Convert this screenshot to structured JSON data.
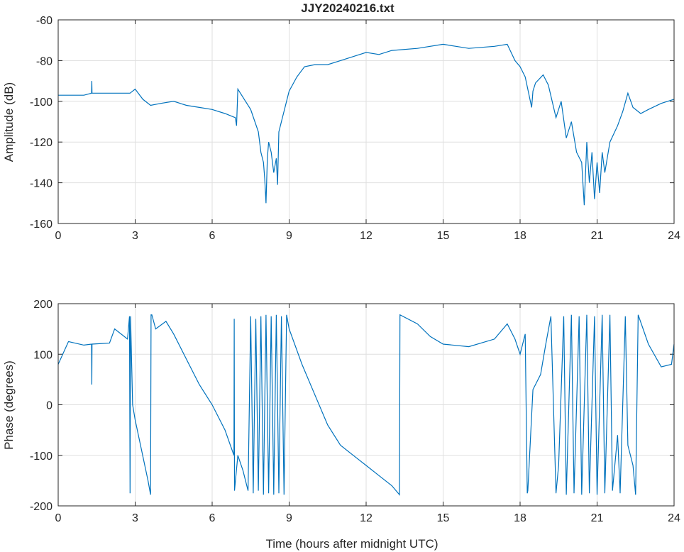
{
  "chart_data": [
    {
      "type": "line",
      "title": "JJY20240216.txt",
      "xlabel": "",
      "ylabel": "Amplitude (dB)",
      "xlim": [
        0,
        24
      ],
      "ylim": [
        -160,
        -60
      ],
      "xticks": [
        0,
        3,
        6,
        9,
        12,
        15,
        18,
        21,
        24
      ],
      "yticks": [
        -160,
        -140,
        -120,
        -100,
        -80,
        -60
      ],
      "grid": true,
      "color": "#0072BD",
      "series": [
        {
          "name": "amplitude",
          "x": [
            0,
            0.5,
            1,
            1.3,
            1.31,
            1.32,
            2,
            2.8,
            3,
            3.3,
            3.6,
            4,
            4.5,
            5,
            5.5,
            6,
            6.5,
            6.9,
            6.95,
            7,
            7.2,
            7.5,
            7.8,
            7.9,
            8,
            8.05,
            8.1,
            8.15,
            8.2,
            8.3,
            8.4,
            8.5,
            8.55,
            8.6,
            8.7,
            9,
            9.3,
            9.6,
            10,
            10.5,
            11,
            11.5,
            12,
            12.5,
            13,
            14,
            15,
            15.5,
            16,
            17,
            17.5,
            17.8,
            18,
            18.2,
            18.45,
            18.5,
            18.6,
            18.9,
            19.1,
            19.4,
            19.6,
            19.8,
            20,
            20.2,
            20.4,
            20.5,
            20.6,
            20.7,
            20.8,
            20.9,
            21,
            21.1,
            21.2,
            21.3,
            21.5,
            21.8,
            22,
            22.2,
            22.4,
            22.7,
            23,
            23.5,
            24
          ],
          "y": [
            -97,
            -97,
            -97,
            -96,
            -90,
            -96,
            -96,
            -96,
            -94,
            -99,
            -102,
            -101,
            -100,
            -102,
            -103,
            -104,
            -106,
            -108,
            -112,
            -94,
            -98,
            -104,
            -115,
            -125,
            -130,
            -138,
            -150,
            -128,
            -120,
            -125,
            -135,
            -128,
            -141,
            -115,
            -110,
            -95,
            -88,
            -83,
            -82,
            -82,
            -80,
            -78,
            -76,
            -77,
            -75,
            -74,
            -72,
            -73,
            -74,
            -73,
            -72,
            -80,
            -83,
            -88,
            -103,
            -95,
            -91,
            -87,
            -92,
            -108,
            -100,
            -118,
            -110,
            -125,
            -130,
            -151,
            -120,
            -140,
            -125,
            -148,
            -130,
            -145,
            -125,
            -135,
            -120,
            -112,
            -105,
            -96,
            -103,
            -106,
            -104,
            -101,
            -99
          ]
        }
      ]
    },
    {
      "type": "line",
      "title": "",
      "xlabel": "Time (hours after midnight UTC)",
      "ylabel": "Phase (degrees)",
      "xlim": [
        0,
        24
      ],
      "ylim": [
        -200,
        200
      ],
      "xticks": [
        0,
        3,
        6,
        9,
        12,
        15,
        18,
        21,
        24
      ],
      "yticks": [
        -200,
        -100,
        0,
        100,
        200
      ],
      "grid": true,
      "color": "#0072BD",
      "series": [
        {
          "name": "phase",
          "x": [
            0,
            0.4,
            1,
            1.3,
            1.31,
            1.32,
            2,
            2.2,
            2.7,
            2.78,
            2.8,
            2.82,
            2.9,
            3,
            3.5,
            3.6,
            3.62,
            3.65,
            3.8,
            4.2,
            4.5,
            5,
            5.5,
            6,
            6.5,
            6.85,
            6.86,
            6.87,
            7,
            7.2,
            7.4,
            7.5,
            7.6,
            7.7,
            7.8,
            7.9,
            8,
            8.1,
            8.2,
            8.3,
            8.4,
            8.5,
            8.6,
            8.7,
            8.8,
            8.9,
            9,
            9.5,
            10,
            10.5,
            11,
            11.5,
            12,
            12.5,
            13,
            13.3,
            13.32,
            14,
            14.5,
            15,
            16,
            17,
            17.5,
            17.8,
            18,
            18.2,
            18.28,
            18.3,
            18.5,
            18.8,
            19,
            19.2,
            19.4,
            19.5,
            19.7,
            19.8,
            20,
            20.1,
            20.3,
            20.4,
            20.6,
            20.7,
            20.9,
            21,
            21.2,
            21.3,
            21.5,
            21.6,
            21.8,
            21.9,
            22.1,
            22.2,
            22.4,
            22.5,
            22.6,
            23,
            23.5,
            23.9,
            24
          ],
          "y": [
            80,
            125,
            118,
            120,
            40,
            120,
            122,
            150,
            130,
            175,
            -175,
            175,
            0,
            -30,
            -150,
            -178,
            178,
            178,
            150,
            165,
            140,
            90,
            40,
            0,
            -50,
            -100,
            170,
            -170,
            -100,
            -130,
            -170,
            175,
            -175,
            170,
            -170,
            175,
            -178,
            178,
            -175,
            175,
            -178,
            178,
            -175,
            175,
            -178,
            178,
            150,
            80,
            20,
            -40,
            -80,
            -100,
            -120,
            -140,
            -160,
            -178,
            178,
            160,
            135,
            120,
            115,
            130,
            160,
            130,
            100,
            140,
            -175,
            -170,
            30,
            60,
            120,
            175,
            -175,
            -120,
            175,
            -178,
            178,
            -175,
            175,
            -178,
            178,
            -175,
            175,
            -178,
            178,
            -175,
            178,
            -170,
            -60,
            -175,
            175,
            -80,
            -120,
            -178,
            178,
            120,
            75,
            80,
            120
          ]
        }
      ]
    }
  ]
}
